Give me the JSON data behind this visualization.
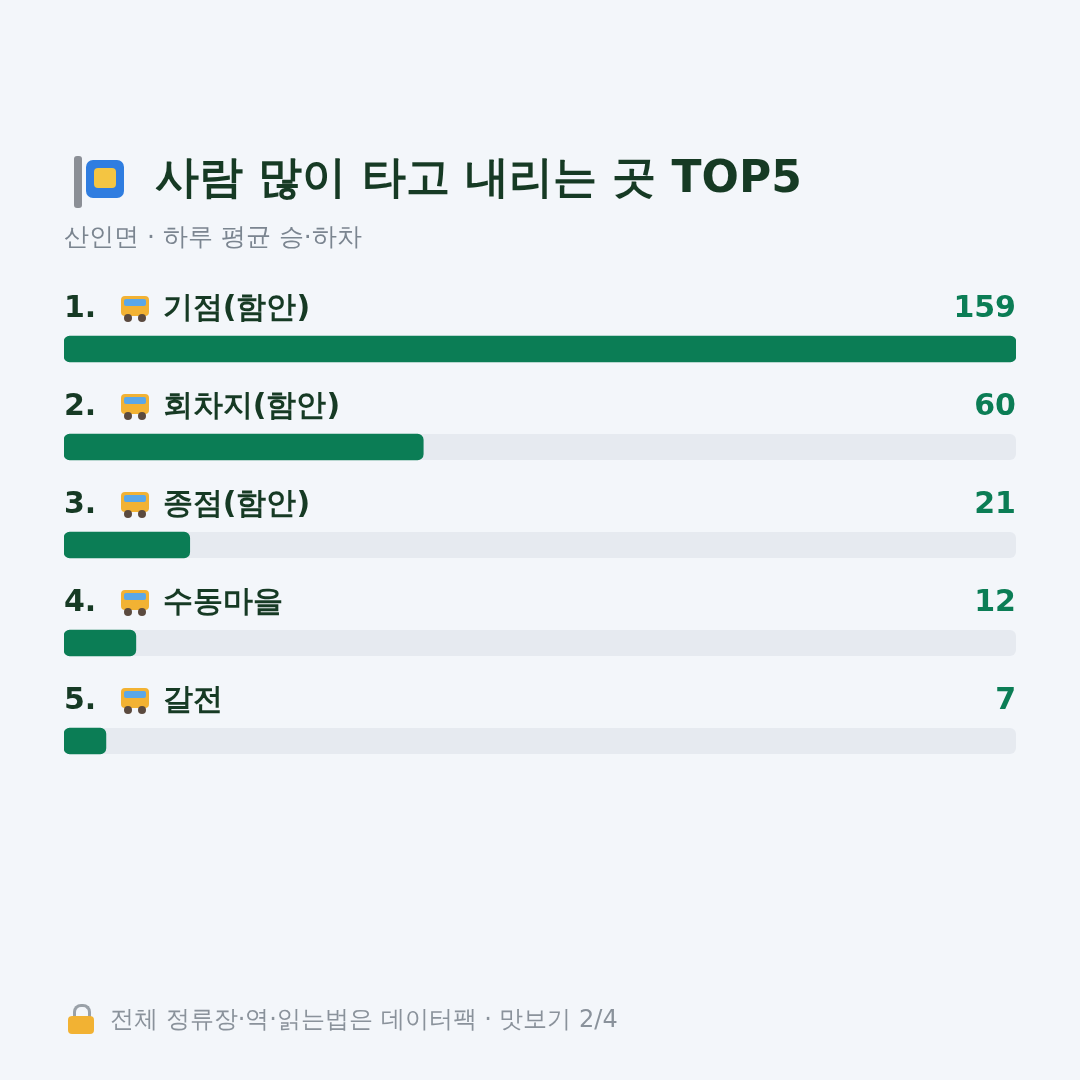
{
  "chart_data": {
    "type": "bar",
    "orientation": "horizontal",
    "title": "사람 많이 타고 내리는 곳 TOP5",
    "subtitle": "산인면 · 하루 평균 승·하차",
    "categories": [
      "1. 기점(함안)",
      "2. 회차지(함안)",
      "3. 종점(함안)",
      "4. 수동마을",
      "5. 갈전"
    ],
    "values": [
      159,
      60,
      21,
      12,
      7
    ],
    "color": "#0b7d55",
    "xlim": [
      0,
      159
    ],
    "data_labels": true,
    "tick_labels": false,
    "annotations": [
      "전체 정류장·역·읽는법은 데이터팩 · 맛보기 2/4"
    ]
  }
}
